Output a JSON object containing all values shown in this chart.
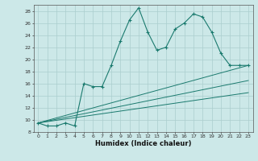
{
  "title": "",
  "xlabel": "Humidex (Indice chaleur)",
  "bg_color": "#cce8e8",
  "line_color": "#1a7a6e",
  "grid_color": "#aacece",
  "xlim": [
    -0.5,
    23.5
  ],
  "ylim": [
    8,
    29
  ],
  "xticks": [
    0,
    1,
    2,
    3,
    4,
    5,
    6,
    7,
    8,
    9,
    10,
    11,
    12,
    13,
    14,
    15,
    16,
    17,
    18,
    19,
    20,
    21,
    22,
    23
  ],
  "yticks": [
    8,
    10,
    12,
    14,
    16,
    18,
    20,
    22,
    24,
    26,
    28
  ],
  "line1_x": [
    0,
    1,
    2,
    3,
    4,
    5,
    6,
    7,
    8,
    9,
    10,
    11,
    12,
    13,
    14,
    15,
    16,
    17,
    18,
    19,
    20,
    21,
    22,
    23
  ],
  "line1_y": [
    9.5,
    9.0,
    9.0,
    9.5,
    9.0,
    16.0,
    15.5,
    15.5,
    19.0,
    23.0,
    26.5,
    28.5,
    24.5,
    21.5,
    22.0,
    25.0,
    26.0,
    27.5,
    27.0,
    24.5,
    21.0,
    19.0,
    19.0,
    19.0
  ],
  "line2_x": [
    0,
    23
  ],
  "line2_y": [
    9.5,
    19.0
  ],
  "line3_x": [
    0,
    23
  ],
  "line3_y": [
    9.5,
    16.5
  ],
  "line4_x": [
    0,
    23
  ],
  "line4_y": [
    9.5,
    14.5
  ]
}
